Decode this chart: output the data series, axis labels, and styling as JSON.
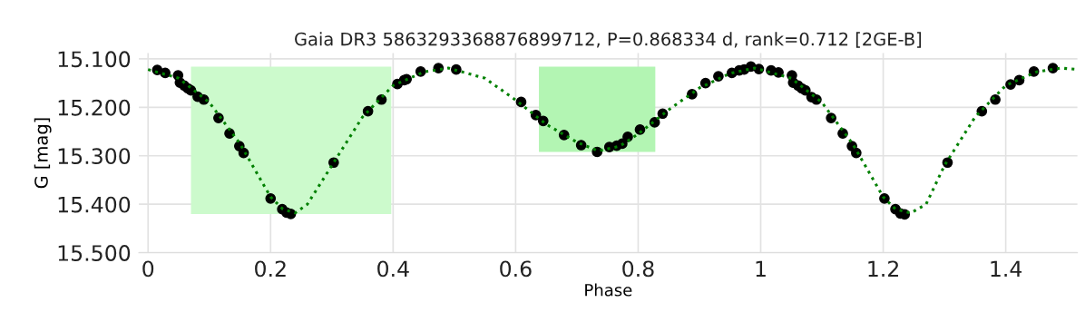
{
  "chart_data": {
    "type": "scatter",
    "title": "Gaia DR3 5863293368876899712, P=0.868334 d, rank=0.712 [2GE-B]",
    "xlabel": "Phase",
    "ylabel": "G [mag]",
    "xlim": [
      -0.015,
      1.517
    ],
    "ylim": [
      15.5,
      15.088
    ],
    "xticks": [
      0,
      0.2,
      0.4,
      0.6,
      0.8,
      1,
      1.2,
      1.4
    ],
    "yticks": [
      {
        "value": 15.1,
        "label": "15.100"
      },
      {
        "value": 15.2,
        "label": "15.200"
      },
      {
        "value": 15.3,
        "label": "15.300"
      },
      {
        "value": 15.4,
        "label": "15.400"
      },
      {
        "value": 15.5,
        "label": "15.500"
      }
    ],
    "grid": true,
    "bands": [
      {
        "axis": "x",
        "from": 0.07,
        "to": 0.397,
        "color": "#ccfacc"
      },
      {
        "axis": "x",
        "from": 0.638,
        "to": 0.828,
        "color": "#b3f5b3"
      }
    ],
    "series": [
      {
        "color": "#000000",
        "marker": "circle",
        "x": [
          0.015,
          0.028,
          0.049,
          0.052,
          0.059,
          0.065,
          0.07,
          0.081,
          0.091,
          0.115,
          0.133,
          0.149,
          0.156,
          0.2,
          0.219,
          0.226,
          0.233,
          0.303,
          0.359,
          0.381,
          0.407,
          0.418,
          0.422,
          0.445,
          0.474,
          0.503,
          0.609,
          0.633,
          0.645,
          0.679,
          0.707,
          0.733,
          0.753,
          0.765,
          0.774,
          0.783,
          0.803,
          0.827,
          0.84,
          0.888,
          0.91,
          0.931,
          0.953,
          0.965,
          0.973,
          0.984,
          0.997,
          1.017,
          1.029,
          1.051,
          1.053,
          1.061,
          1.067,
          1.073,
          1.083,
          1.091,
          1.115,
          1.134,
          1.149,
          1.156,
          1.202,
          1.22,
          1.228,
          1.235,
          1.305,
          1.361,
          1.383,
          1.408,
          1.422,
          1.446,
          1.477
        ],
        "values": [
          15.123,
          15.129,
          15.134,
          15.149,
          15.155,
          15.161,
          15.165,
          15.178,
          15.184,
          15.222,
          15.254,
          15.28,
          15.294,
          15.388,
          15.41,
          15.417,
          15.42,
          15.314,
          15.208,
          15.184,
          15.152,
          15.144,
          15.142,
          15.126,
          15.119,
          15.122,
          15.189,
          15.216,
          15.228,
          15.257,
          15.278,
          15.292,
          15.282,
          15.279,
          15.275,
          15.261,
          15.246,
          15.231,
          15.213,
          15.173,
          15.15,
          15.136,
          15.129,
          15.124,
          15.122,
          15.116,
          15.121,
          15.124,
          15.128,
          15.134,
          15.149,
          15.155,
          15.161,
          15.165,
          15.179,
          15.184,
          15.222,
          15.254,
          15.28,
          15.294,
          15.388,
          15.41,
          15.419,
          15.421,
          15.314,
          15.208,
          15.184,
          15.153,
          15.144,
          15.126,
          15.119
        ]
      },
      {
        "type": "line",
        "color": "#008000",
        "line_style": "dotted",
        "x": [
          0,
          0.05,
          0.1,
          0.15,
          0.2,
          0.22,
          0.24,
          0.26,
          0.3,
          0.35,
          0.4,
          0.45,
          0.49,
          0.55,
          0.6,
          0.65,
          0.7,
          0.735,
          0.77,
          0.8,
          0.85,
          0.9,
          0.95,
          0.99,
          1.05,
          1.1,
          1.15,
          1.2,
          1.22,
          1.245,
          1.27,
          1.3,
          1.35,
          1.4,
          1.45,
          1.49,
          1.517
        ],
        "values": [
          15.122,
          15.14,
          15.19,
          15.275,
          15.385,
          15.41,
          15.418,
          15.4,
          15.32,
          15.22,
          15.155,
          15.127,
          15.119,
          15.14,
          15.185,
          15.235,
          15.272,
          15.29,
          15.28,
          15.255,
          15.205,
          15.16,
          15.13,
          15.119,
          15.14,
          15.19,
          15.275,
          15.385,
          15.41,
          15.418,
          15.4,
          15.32,
          15.22,
          15.155,
          15.127,
          15.119,
          15.122
        ]
      }
    ]
  }
}
